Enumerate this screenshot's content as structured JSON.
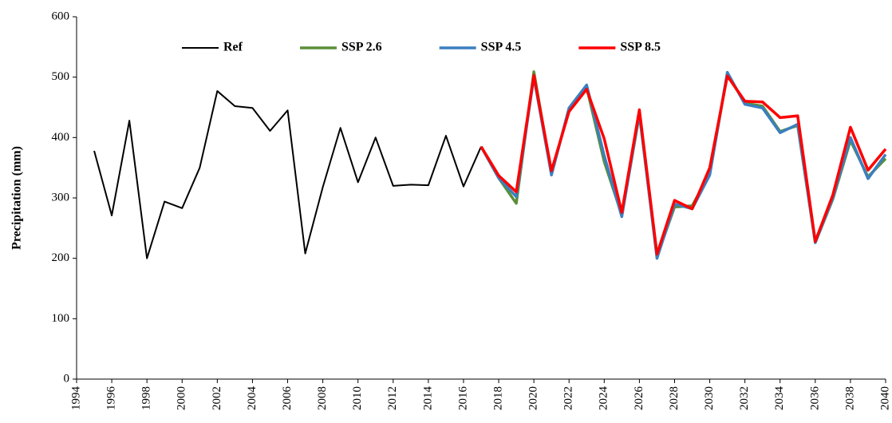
{
  "chart_data": {
    "type": "line",
    "ylabel": "Precipitation (mm)",
    "x": [
      1995,
      1996,
      1997,
      1998,
      1999,
      2000,
      2001,
      2002,
      2003,
      2004,
      2005,
      2006,
      2007,
      2008,
      2009,
      2010,
      2011,
      2012,
      2013,
      2014,
      2015,
      2016,
      2017,
      2018,
      2019,
      2020,
      2021,
      2022,
      2023,
      2024,
      2025,
      2026,
      2027,
      2028,
      2029,
      2030,
      2031,
      2032,
      2033,
      2034,
      2035,
      2036,
      2037,
      2038,
      2039,
      2040
    ],
    "series": [
      {
        "name": "Ref",
        "color": "#000000",
        "width": 2,
        "values": [
          378,
          271,
          428,
          200,
          294,
          283,
          350,
          477,
          452,
          449,
          411,
          445,
          208,
          318,
          416,
          326,
          400,
          320,
          322,
          321,
          403,
          319,
          385,
          null,
          null,
          null,
          null,
          null,
          null,
          null,
          null,
          null,
          null,
          null,
          null,
          null,
          null,
          null,
          null,
          null,
          null,
          null,
          null,
          null,
          null,
          null
        ]
      },
      {
        "name": "SSP 2.6",
        "color": "#5b8f3a",
        "width": 3.5,
        "values": [
          null,
          null,
          null,
          null,
          null,
          null,
          null,
          null,
          null,
          null,
          null,
          null,
          null,
          null,
          null,
          null,
          null,
          null,
          null,
          null,
          null,
          null,
          385,
          333,
          291,
          509,
          340,
          447,
          483,
          360,
          272,
          438,
          203,
          285,
          287,
          340,
          505,
          457,
          452,
          410,
          420,
          226,
          298,
          395,
          335,
          365
        ]
      },
      {
        "name": "SSP 4.5",
        "color": "#3b7fbf",
        "width": 3.5,
        "values": [
          null,
          null,
          null,
          null,
          null,
          null,
          null,
          null,
          null,
          null,
          null,
          null,
          null,
          null,
          null,
          null,
          null,
          null,
          null,
          null,
          null,
          null,
          385,
          333,
          302,
          500,
          338,
          449,
          487,
          370,
          269,
          440,
          200,
          290,
          282,
          338,
          508,
          455,
          449,
          408,
          422,
          226,
          300,
          400,
          332,
          372
        ]
      },
      {
        "name": "SSP 8.5",
        "color": "#ff0000",
        "width": 3.5,
        "values": [
          null,
          null,
          null,
          null,
          null,
          null,
          null,
          null,
          null,
          null,
          null,
          null,
          null,
          null,
          null,
          null,
          null,
          null,
          null,
          null,
          null,
          null,
          385,
          337,
          310,
          503,
          345,
          443,
          480,
          398,
          276,
          446,
          207,
          296,
          282,
          350,
          502,
          460,
          459,
          433,
          436,
          228,
          305,
          417,
          346,
          381
        ]
      }
    ],
    "xlim": [
      1994,
      2040
    ],
    "xticks": [
      1994,
      1996,
      1998,
      2000,
      2002,
      2004,
      2006,
      2008,
      2010,
      2012,
      2014,
      2016,
      2018,
      2020,
      2022,
      2024,
      2026,
      2028,
      2030,
      2032,
      2034,
      2036,
      2038,
      2040
    ],
    "ylim": [
      0,
      600
    ],
    "yticks": [
      0,
      100,
      200,
      300,
      400,
      500,
      600
    ],
    "legend": true,
    "grid": false
  }
}
